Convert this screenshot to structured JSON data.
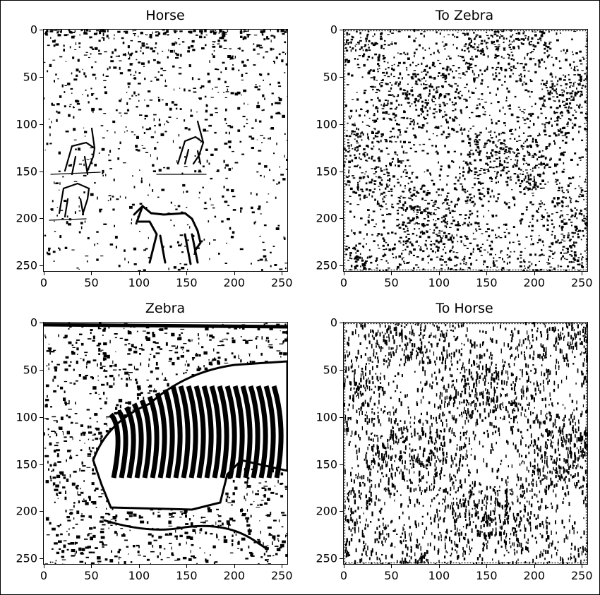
{
  "figure": {
    "panels": [
      {
        "title": "Horse",
        "image": "sketch of three antelope-like animals and a horse outline on a plain field"
      },
      {
        "title": "To Zebra",
        "image": "dense black-and-white noise texture"
      },
      {
        "title": "Zebra",
        "image": "sketch of a zebra grazing with bold black stripes"
      },
      {
        "title": "To Horse",
        "image": "dense black-and-white noise texture"
      }
    ],
    "x_ticks": [
      "0",
      "50",
      "100",
      "150",
      "200",
      "250"
    ],
    "y_ticks": [
      "0",
      "50",
      "100",
      "150",
      "200",
      "250"
    ],
    "tick_values": [
      0,
      50,
      100,
      150,
      200,
      250
    ],
    "pixel_extent": [
      0,
      255
    ]
  },
  "colors": {
    "ink": "#000000",
    "paper": "#ffffff"
  }
}
